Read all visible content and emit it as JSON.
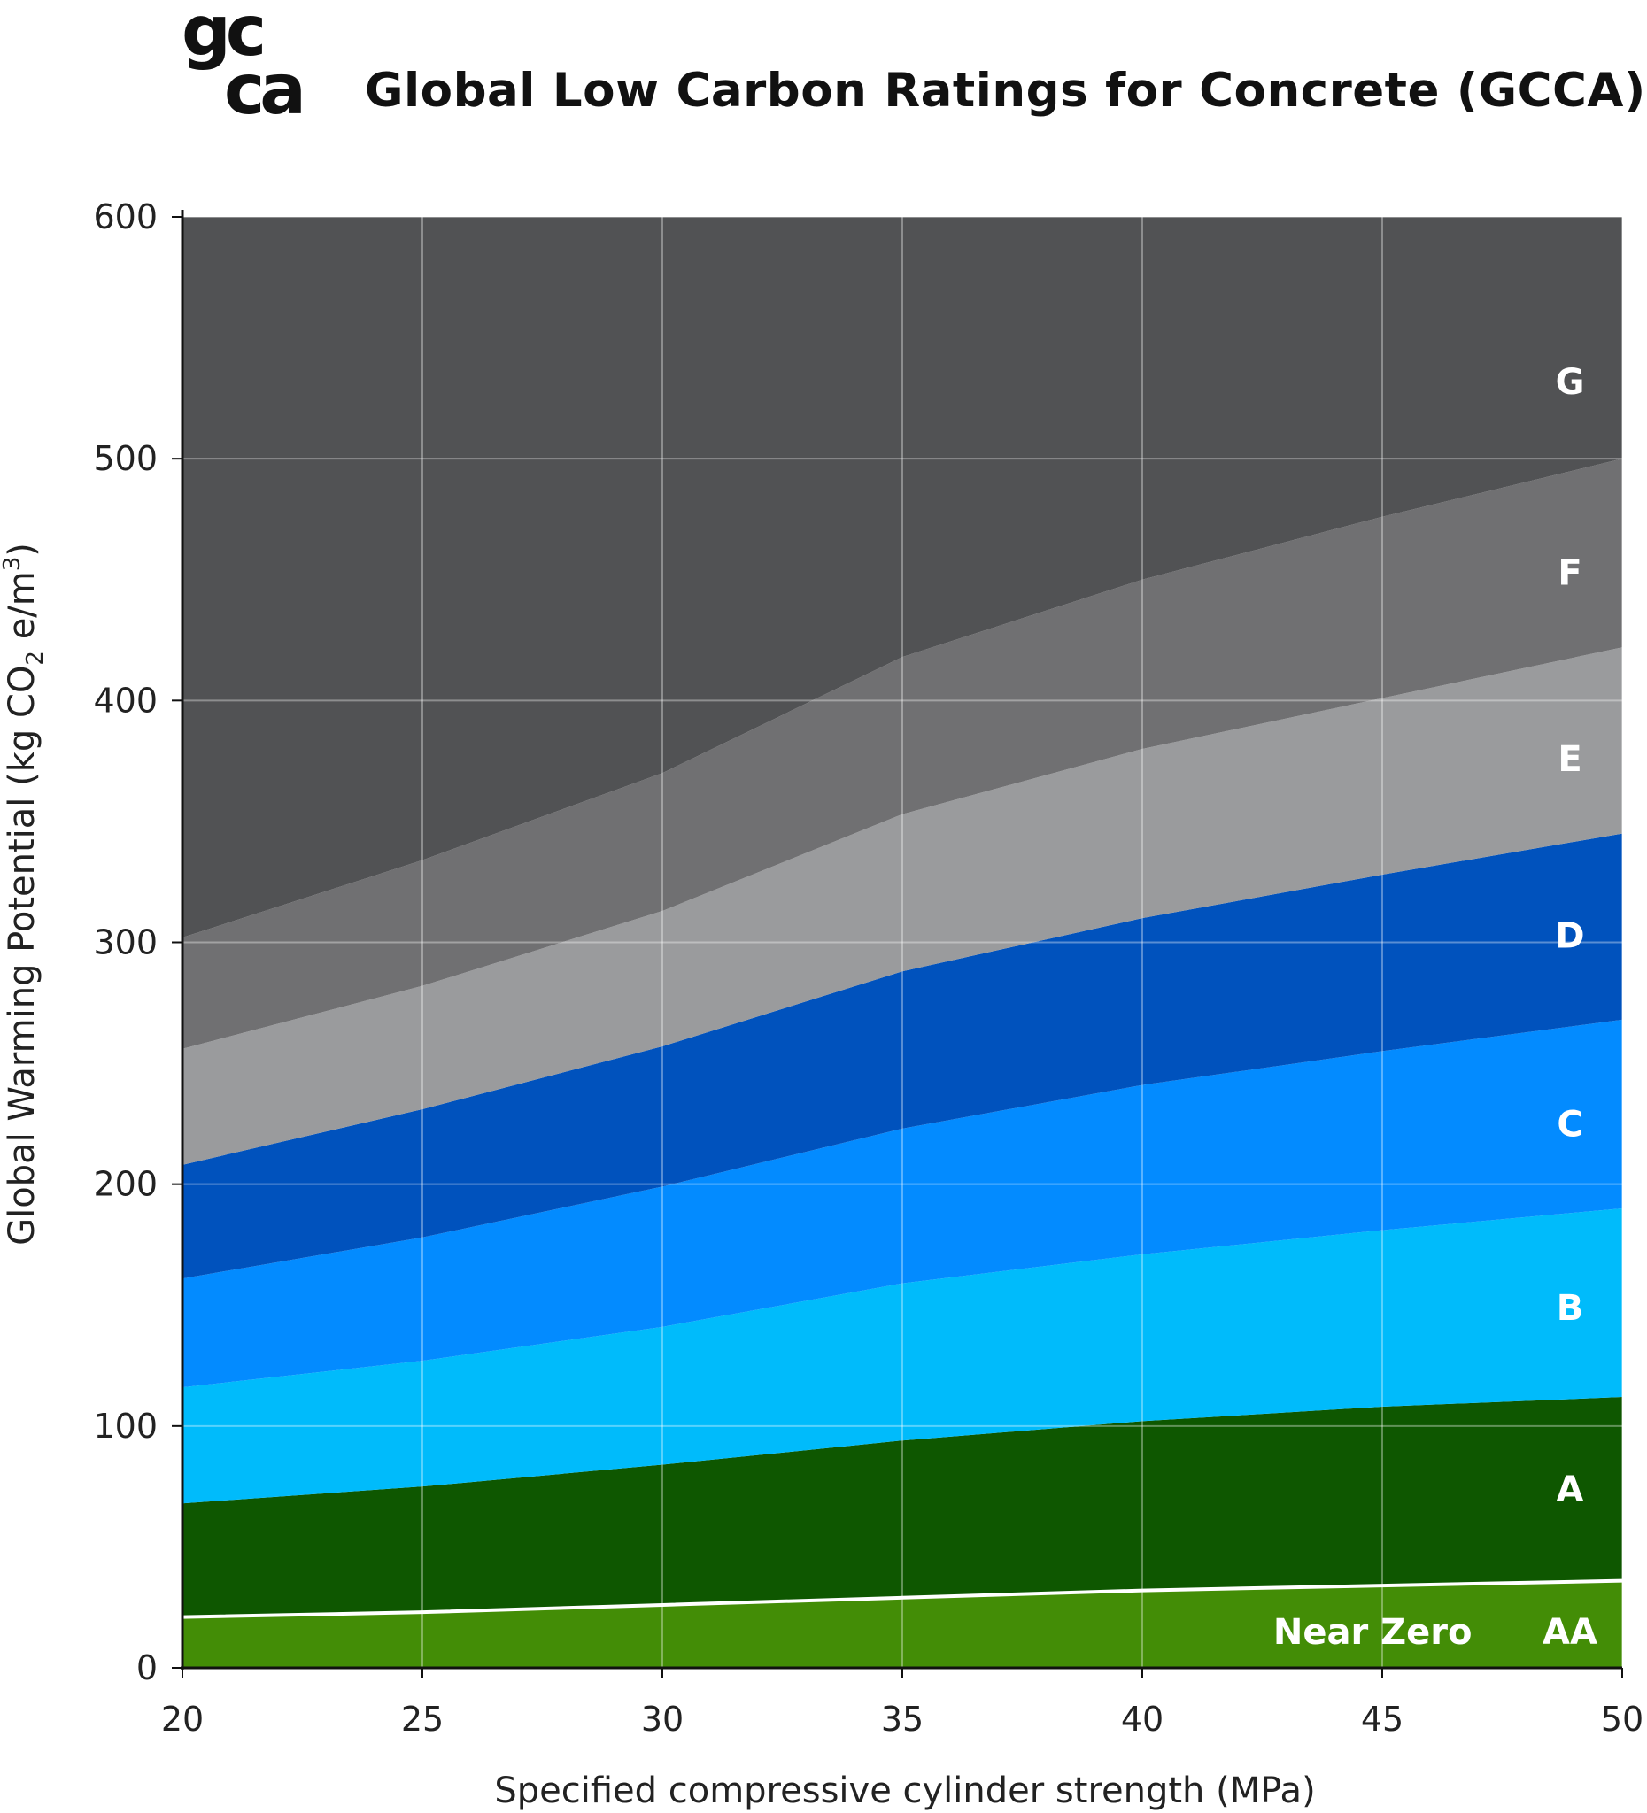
{
  "logo": {
    "line1": "gc",
    "line2": "ca",
    "text": "gcca"
  },
  "title": "Global Low Carbon Ratings for Concrete (GCCA)",
  "chart_data": {
    "type": "area",
    "title": "Global Low Carbon Ratings for Concrete (GCCA)",
    "xlabel": "Specified compressive cylinder strength (MPa)",
    "ylabel": "Global Warming Potential (kg CO2 e/m3)",
    "ylabel_parts": {
      "pre": "Global Warming Potential (kg CO",
      "sub": "2",
      "mid": " e/m",
      "sup": "3",
      "post": ")"
    },
    "x": [
      20,
      25,
      30,
      35,
      40,
      45,
      50
    ],
    "xlim": [
      20,
      50
    ],
    "ylim": [
      0,
      600
    ],
    "xticks": [
      "20",
      "25",
      "30",
      "35",
      "40",
      "45",
      "50"
    ],
    "yticks": [
      "0",
      "100",
      "200",
      "300",
      "400",
      "500",
      "600"
    ],
    "grid": true,
    "legend": "none",
    "boundaries": [
      {
        "name": "AA upper",
        "values": [
          21,
          23,
          26,
          29,
          32,
          34,
          36
        ]
      },
      {
        "name": "A upper",
        "values": [
          68,
          75,
          84,
          94,
          102,
          108,
          112
        ]
      },
      {
        "name": "B upper",
        "values": [
          116,
          127,
          141,
          159,
          171,
          181,
          190
        ]
      },
      {
        "name": "C upper",
        "values": [
          161,
          178,
          199,
          223,
          241,
          255,
          268
        ]
      },
      {
        "name": "D upper",
        "values": [
          208,
          231,
          257,
          288,
          310,
          328,
          345
        ]
      },
      {
        "name": "E upper",
        "values": [
          256,
          282,
          313,
          353,
          380,
          401,
          422
        ]
      },
      {
        "name": "F upper",
        "values": [
          302,
          334,
          370,
          418,
          450,
          476,
          500
        ]
      }
    ],
    "bands": [
      {
        "label": "AA",
        "color": "#438d06",
        "label_y": 15
      },
      {
        "label": "A",
        "color": "#0e5700",
        "label_y": 74
      },
      {
        "label": "B",
        "color": "#00bbfb",
        "label_y": 149
      },
      {
        "label": "C",
        "color": "#038bff",
        "label_y": 225
      },
      {
        "label": "D",
        "color": "#0052bd",
        "label_y": 303
      },
      {
        "label": "E",
        "color": "#9a9b9d",
        "label_y": 376
      },
      {
        "label": "F",
        "color": "#707072",
        "label_y": 453
      },
      {
        "label": "G",
        "color": "#515254",
        "label_y": 532
      }
    ],
    "near_zero_line": {
      "color": "#ffffff"
    },
    "annotations": [
      {
        "text": "Near Zero",
        "x": 44.8,
        "y": 15
      }
    ]
  }
}
